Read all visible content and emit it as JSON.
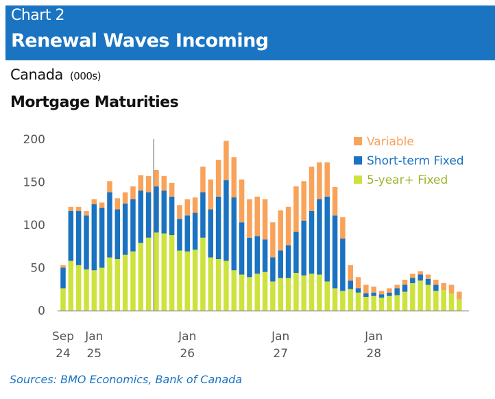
{
  "header": {
    "chart_number": "Chart 2",
    "title": "Renewal Waves Incoming"
  },
  "geography": "Canada",
  "unit": "(000s)",
  "subtitle": "Mortgage Maturities",
  "source": "Sources: BMO Economics, Bank of Canada",
  "colors": {
    "variable": "#f9a25a",
    "short_term_fixed": "#1a72c0",
    "five_year_fixed": "#cde23c",
    "header": "#1a74c2"
  },
  "chart_data": {
    "type": "bar",
    "stacked": true,
    "title": "Mortgage Maturities",
    "ylabel": "(000s)",
    "ylim": [
      0,
      200
    ],
    "yticks": [
      "0",
      "50",
      "100",
      "150",
      "200"
    ],
    "xtick_labels": [
      {
        "index": 0,
        "month": "Sep",
        "year": "24"
      },
      {
        "index": 4,
        "month": "Jan",
        "year": "25"
      },
      {
        "index": 16,
        "month": "Jan",
        "year": "26"
      },
      {
        "index": 28,
        "month": "Jan",
        "year": "27"
      },
      {
        "index": 40,
        "month": "Jan",
        "year": "28"
      }
    ],
    "categories_start": "Sep 2024",
    "categories_end": "Dec 2028",
    "vertical_marker_after_index": 11,
    "legend": {
      "placement": "top-right",
      "entries": [
        "Variable",
        "Short-term Fixed",
        "5-year+ Fixed"
      ]
    },
    "series": [
      {
        "name": "5-year+ Fixed",
        "values": [
          26,
          58,
          53,
          48,
          47,
          50,
          62,
          60,
          65,
          69,
          79,
          85,
          91,
          90,
          88,
          70,
          69,
          71,
          85,
          62,
          60,
          58,
          47,
          42,
          39,
          43,
          45,
          34,
          38,
          38,
          44,
          41,
          43,
          42,
          34,
          26,
          23,
          25,
          21,
          16,
          17,
          15,
          17,
          18,
          22,
          32,
          35,
          30,
          23,
          24,
          20,
          13
        ]
      },
      {
        "name": "Short-term Fixed",
        "values": [
          24,
          58,
          63,
          63,
          77,
          70,
          76,
          58,
          60,
          61,
          61,
          53,
          54,
          50,
          45,
          37,
          42,
          43,
          53,
          56,
          73,
          94,
          85,
          61,
          46,
          44,
          38,
          28,
          32,
          38,
          48,
          64,
          73,
          88,
          99,
          85,
          61,
          10,
          5,
          4,
          4,
          4,
          4,
          8,
          8,
          6,
          7,
          7,
          7,
          0,
          0,
          0
        ]
      },
      {
        "name": "Variable",
        "values": [
          3,
          5,
          5,
          5,
          6,
          6,
          13,
          13,
          13,
          15,
          18,
          19,
          19,
          17,
          16,
          16,
          19,
          18,
          30,
          35,
          43,
          46,
          47,
          50,
          45,
          46,
          47,
          41,
          47,
          45,
          53,
          46,
          52,
          43,
          40,
          33,
          25,
          18,
          13,
          10,
          7,
          4,
          5,
          4,
          6,
          5,
          4,
          5,
          6,
          8,
          10,
          9
        ]
      }
    ]
  }
}
